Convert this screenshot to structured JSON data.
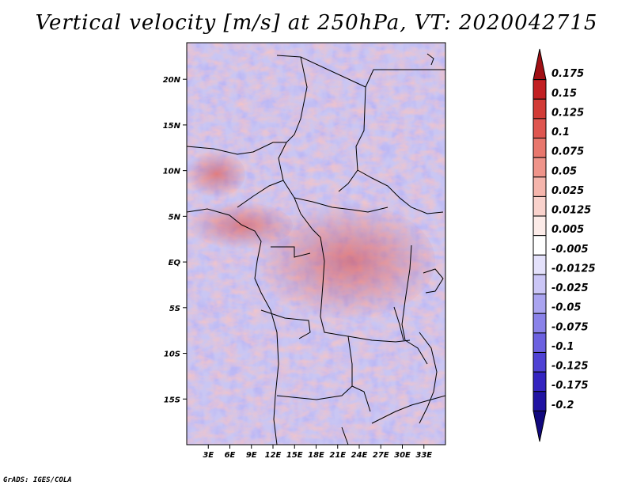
{
  "title": "Vertical velocity [m/s] at 250hPa, VT: 2020042715",
  "credit": "GrADS: IGES/COLA",
  "map": {
    "lon_range": [
      0,
      36
    ],
    "lat_range": [
      -20,
      24
    ],
    "lat_ticks": [
      "20N",
      "15N",
      "10N",
      "5N",
      "EQ",
      "5S",
      "10S",
      "15S"
    ],
    "lat_values": [
      20,
      15,
      10,
      5,
      0,
      -5,
      -10,
      -15
    ],
    "lon_ticks": [
      "3E",
      "6E",
      "9E",
      "12E",
      "15E",
      "18E",
      "21E",
      "24E",
      "27E",
      "30E",
      "33E"
    ],
    "lon_values": [
      3,
      6,
      9,
      12,
      15,
      18,
      21,
      24,
      27,
      30,
      33
    ]
  },
  "colorbar": {
    "labels": [
      "0.175",
      "0.15",
      "0.125",
      "0.1",
      "0.075",
      "0.05",
      "0.025",
      "0.0125",
      "0.005",
      "-0.005",
      "-0.0125",
      "-0.025",
      "-0.05",
      "-0.075",
      "-0.1",
      "-0.125",
      "-0.175",
      "-0.2"
    ],
    "colors": [
      "#a00f14",
      "#c21f22",
      "#d23b36",
      "#df5650",
      "#e8776d",
      "#ef948a",
      "#f5b5ac",
      "#f9d2cc",
      "#fcebe8",
      "#ffffff",
      "#e4e1fb",
      "#cbc6f6",
      "#aaa4f0",
      "#8a82e9",
      "#6c61e0",
      "#4f42d4",
      "#3424c0",
      "#2013a2",
      "#11087e"
    ]
  }
}
